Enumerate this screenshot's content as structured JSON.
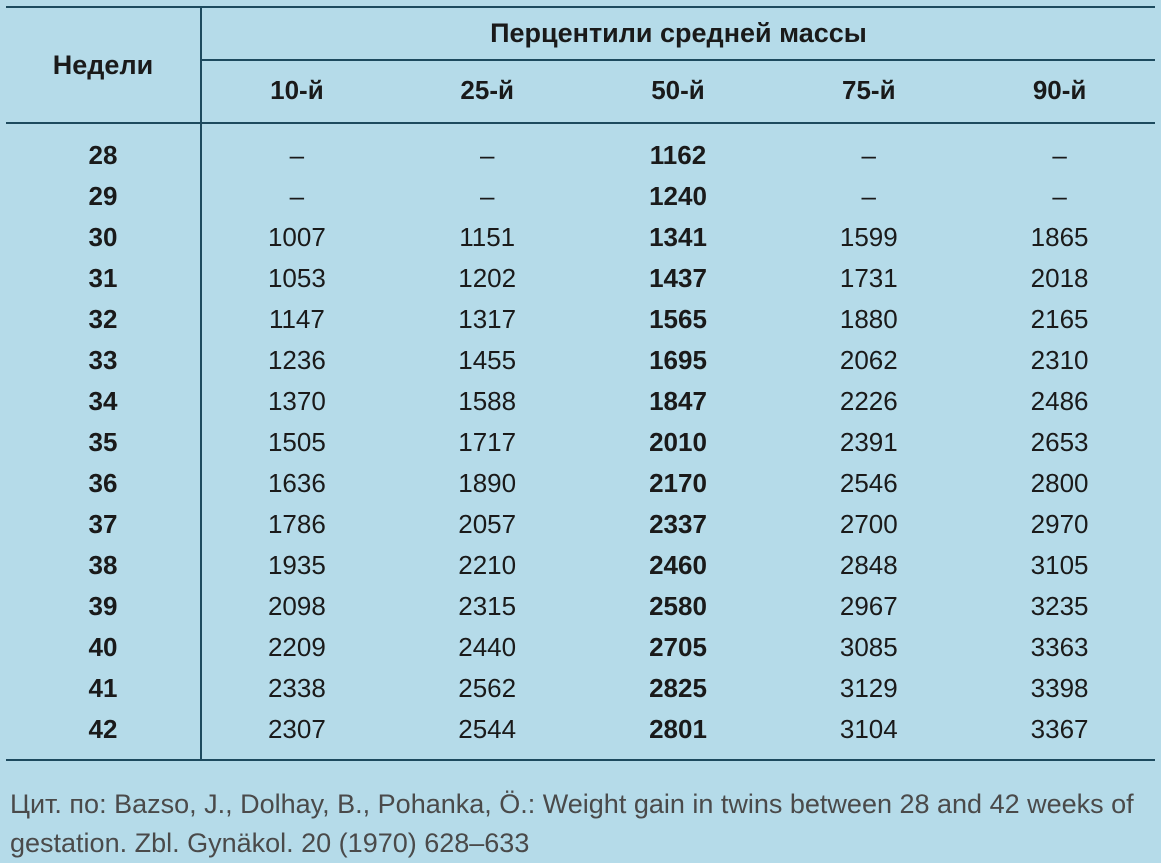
{
  "table": {
    "type": "table",
    "weeks_header": "Недели",
    "span_header": "Перцентили средней массы",
    "percentile_labels": [
      "10-й",
      "25-й",
      "50-й",
      "75-й",
      "90-й"
    ],
    "bold_column_index": 2,
    "rows": [
      {
        "week": "28",
        "vals": [
          "–",
          "–",
          "1162",
          "–",
          "–"
        ]
      },
      {
        "week": "29",
        "vals": [
          "–",
          "–",
          "1240",
          "–",
          "–"
        ]
      },
      {
        "week": "30",
        "vals": [
          "1007",
          "1151",
          "1341",
          "1599",
          "1865"
        ]
      },
      {
        "week": "31",
        "vals": [
          "1053",
          "1202",
          "1437",
          "1731",
          "2018"
        ]
      },
      {
        "week": "32",
        "vals": [
          "1147",
          "1317",
          "1565",
          "1880",
          "2165"
        ]
      },
      {
        "week": "33",
        "vals": [
          "1236",
          "1455",
          "1695",
          "2062",
          "2310"
        ]
      },
      {
        "week": "34",
        "vals": [
          "1370",
          "1588",
          "1847",
          "2226",
          "2486"
        ]
      },
      {
        "week": "35",
        "vals": [
          "1505",
          "1717",
          "2010",
          "2391",
          "2653"
        ]
      },
      {
        "week": "36",
        "vals": [
          "1636",
          "1890",
          "2170",
          "2546",
          "2800"
        ]
      },
      {
        "week": "37",
        "vals": [
          "1786",
          "2057",
          "2337",
          "2700",
          "2970"
        ]
      },
      {
        "week": "38",
        "vals": [
          "1935",
          "2210",
          "2460",
          "2848",
          "3105"
        ]
      },
      {
        "week": "39",
        "vals": [
          "2098",
          "2315",
          "2580",
          "2967",
          "3235"
        ]
      },
      {
        "week": "40",
        "vals": [
          "2209",
          "2440",
          "2705",
          "3085",
          "3363"
        ]
      },
      {
        "week": "41",
        "vals": [
          "2338",
          "2562",
          "2825",
          "3129",
          "3398"
        ]
      },
      {
        "week": "42",
        "vals": [
          "2307",
          "2544",
          "2801",
          "3104",
          "3367"
        ]
      }
    ],
    "colors": {
      "background": "#b5dbe9",
      "border": "#1d4a5e",
      "text": "#1a1a1a",
      "citation_text": "#4a4a4a"
    },
    "font_sizes": {
      "header": 27,
      "subheader": 26,
      "body": 26,
      "citation": 27
    }
  },
  "citation": "Цит. по: Bazso, J., Dolhay, B., Pohanka, Ö.: Weight gain in twins between 28 and 42 weeks of gestation. Zbl. Gynäkol. 20 (1970) 628–633"
}
